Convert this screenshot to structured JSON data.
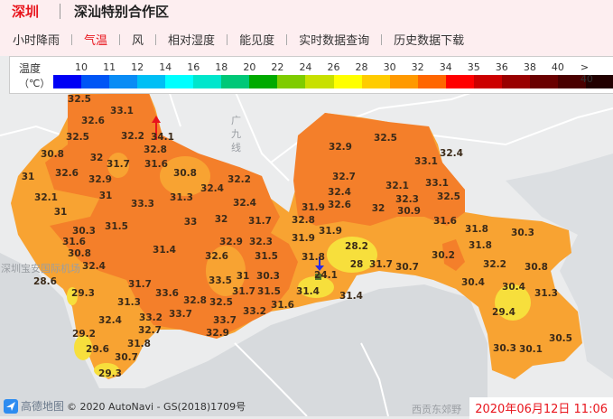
{
  "header": {
    "city": "深圳",
    "sub_region": "深汕特别合作区"
  },
  "nav": {
    "items": [
      {
        "label": "小时降雨",
        "active": false
      },
      {
        "label": "气温",
        "active": true
      },
      {
        "label": "风",
        "active": false
      },
      {
        "label": "相对湿度",
        "active": false
      },
      {
        "label": "能见度",
        "active": false
      },
      {
        "label": "实时数据查询",
        "active": false
      },
      {
        "label": "历史数据下载",
        "active": false
      }
    ]
  },
  "legend": {
    "title": "温度",
    "unit": "（℃）",
    "ticks": [
      "10",
      "11",
      "12",
      "14",
      "16",
      "18",
      "20",
      "22",
      "24",
      "26",
      "28",
      "30",
      "32",
      "34",
      "35",
      "36",
      "38",
      "40",
      "> 40"
    ],
    "colors": [
      "#0000f5",
      "#0055f5",
      "#0a8cf5",
      "#00bff5",
      "#00ffff",
      "#00e6cc",
      "#00c878",
      "#00aa00",
      "#7fcc00",
      "#c8e000",
      "#ffff00",
      "#ffcc00",
      "#ff9900",
      "#ff6600",
      "#ff0000",
      "#cc0000",
      "#990000",
      "#6a0000",
      "#4a0000",
      "#220000"
    ]
  },
  "map": {
    "place_labels": [
      "广",
      "九",
      "线",
      "深圳宝安国际机场",
      "西贡东郊野"
    ],
    "temperature_readings": [
      "32.5",
      "33.1",
      "32.6",
      "32.5",
      "32.2",
      "34.1",
      "32.8",
      "30.8",
      "32",
      "31.7",
      "31.6",
      "30.8",
      "31",
      "32.6",
      "32.9",
      "32.2",
      "32.4",
      "32.1",
      "31",
      "31.3",
      "32.4",
      "31",
      "33.3",
      "33",
      "32",
      "31.7",
      "30.3",
      "31.5",
      "31.6",
      "32.9",
      "32.3",
      "30.8",
      "31.4",
      "32.6",
      "31.5",
      "32.4",
      "28.6",
      "31.7",
      "33.5",
      "31",
      "30.3",
      "29.3",
      "33.6",
      "31.7",
      "31.5",
      "31.3",
      "32.8",
      "32.5",
      "31.6",
      "33.2",
      "32.4",
      "33.2",
      "33.7",
      "33.7",
      "32.7",
      "32.9",
      "29.2",
      "31.8",
      "29.6",
      "30.7",
      "29.3",
      "32.5",
      "32.9",
      "33.1",
      "32.4",
      "32.7",
      "32.1",
      "33.1",
      "32.4",
      "32.6",
      "32.3",
      "32.5",
      "31.9",
      "32",
      "30.9",
      "32.8",
      "31.6",
      "31.9",
      "31.8",
      "30.3",
      "31.9",
      "31.8",
      "28.2",
      "31.8",
      "30.2",
      "28",
      "31.7",
      "30.7",
      "32.2",
      "30.8",
      "24.1",
      "30.4",
      "30.4",
      "31.4",
      "31.4",
      "31.3",
      "29.4",
      "30.5",
      "30.3",
      "30.1"
    ],
    "max_marker": "up-arrow-red",
    "min_marker": "down-arrow-blue",
    "colors": {
      "deep_orange": "#f47f2a",
      "orange": "#f8a332",
      "yellow": "#f7df3c",
      "water": "#d7dadd",
      "land": "#ebeced"
    }
  },
  "attribution": {
    "logo": "高德地图",
    "text": "© 2020 AutoNavi - GS(2018)1709号"
  },
  "timestamp": "2020年06月12日 11:06"
}
